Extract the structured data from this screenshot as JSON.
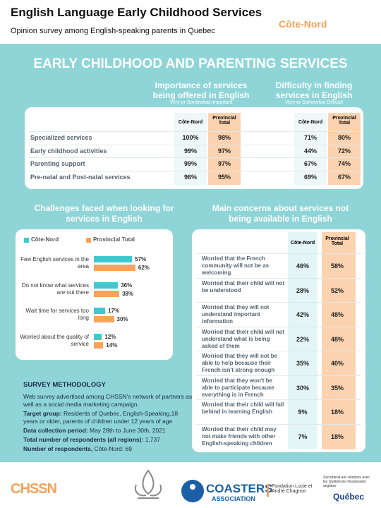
{
  "header": {
    "title": "English Language Early Childhood Services",
    "subtitle": "Opinion survey among English-speaking parents in Quebec",
    "region": "Côte-Nord"
  },
  "section_title": "EARLY CHILDHOOD AND PARENTING SERVICES",
  "services": {
    "importance_title": "Importance of services being offered in English",
    "importance_note": "Very or Somewhat Important",
    "difficulty_title": "Difficulty in finding services in English",
    "difficulty_note": "Very or Somewhat Difficult",
    "columns": [
      "Côte-Nord",
      "Provincial Total"
    ],
    "rows": [
      {
        "label": "Specialized services",
        "importance": [
          "100%",
          "98%"
        ],
        "difficulty": [
          "71%",
          "80%"
        ]
      },
      {
        "label": "Early childhood activities",
        "importance": [
          "99%",
          "97%"
        ],
        "difficulty": [
          "44%",
          "72%"
        ]
      },
      {
        "label": "Parenting support",
        "importance": [
          "99%",
          "97%"
        ],
        "difficulty": [
          "67%",
          "74%"
        ]
      },
      {
        "label": "Pre-natal and Post-natal services",
        "importance": [
          "96%",
          "95%"
        ],
        "difficulty": [
          "69%",
          "67%"
        ]
      }
    ]
  },
  "challenges": {
    "type": "bar",
    "title": "Challenges faced when looking for services in English",
    "categories": [
      "Few English services in the area",
      "Do not know what services are out there",
      "Wait time for services too long",
      "Worried about the quality of service"
    ],
    "series": [
      {
        "name": "Côte-Nord",
        "color": "#3ec9d1",
        "values": [
          57,
          36,
          17,
          12
        ],
        "value_labels": [
          "57%",
          "36%",
          "17%",
          "12%"
        ]
      },
      {
        "name": "Provincial Total",
        "color": "#f7a35c",
        "values": [
          62,
          38,
          30,
          14
        ],
        "value_labels": [
          "62%",
          "38%",
          "30%",
          "14%"
        ]
      }
    ]
  },
  "concerns": {
    "title": "Main concerns about services not being available in English",
    "columns": [
      "Côte-Nord",
      "Provincial Total"
    ],
    "rows": [
      {
        "label": "Worried that the French community will not be as welcoming",
        "values": [
          "46%",
          "58%"
        ]
      },
      {
        "label": "Worried that their child will not be understood",
        "values": [
          "28%",
          "52%"
        ]
      },
      {
        "label": "Worried that they will not understand important information",
        "values": [
          "42%",
          "48%"
        ]
      },
      {
        "label": "Worried that their child will not understand what is being asked of them",
        "values": [
          "22%",
          "48%"
        ]
      },
      {
        "label": "Worried that they will not be able to help because their French isn't strong enough",
        "values": [
          "35%",
          "40%"
        ]
      },
      {
        "label": "Worried that they won't be able to participate because everything is in French",
        "values": [
          "30%",
          "35%"
        ]
      },
      {
        "label": "Worried that their child will fall behind in learning English",
        "values": [
          "9%",
          "18%"
        ]
      },
      {
        "label": "Worried that their child may not make friends with other English-speaking children",
        "values": [
          "7%",
          "18%"
        ]
      }
    ]
  },
  "methodology": {
    "title": "SURVEY METHODOLOGY",
    "description": "Web survey advertised among CHSSN's network of partners as well as a social media marketing campaign.",
    "items": [
      {
        "label": "Target group:",
        "text": "Residents of Quebec, English-Speaking,18 years or older, parents of children under 12 years of age"
      },
      {
        "label": "Data collection period:",
        "text": "May 28th to June 30th, 2021"
      },
      {
        "label": "Total number of respondents (all regions):",
        "text": "1,737"
      },
      {
        "label": "Number of respondents,",
        "text": "Côte-Nord: 69"
      }
    ]
  },
  "footer": {
    "chssn": "CHSSN",
    "coasters": "COASTERS",
    "association": "ASSOCIATION",
    "fondation": "Fondation Lucie et André Chagnon",
    "secretariat": "Secrétariat aux relations avec les Québécois d'expression anglaise",
    "quebec": "Québec"
  }
}
